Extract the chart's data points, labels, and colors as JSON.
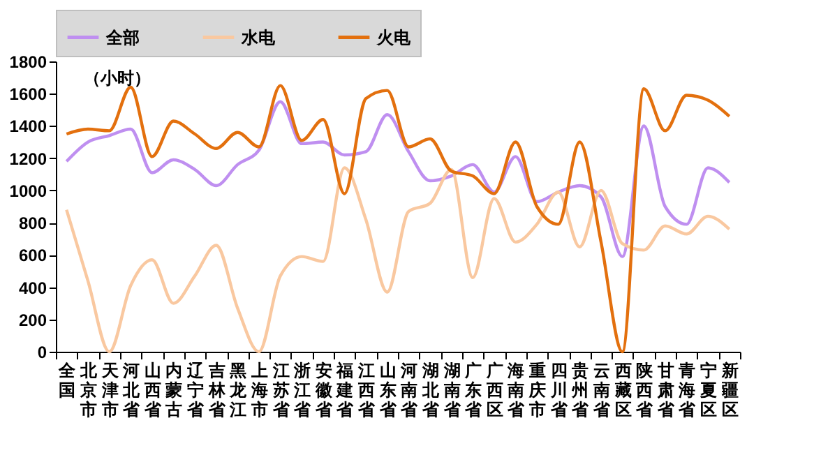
{
  "chart_data": {
    "type": "line",
    "categories": [
      "全国",
      "北京市",
      "天津市",
      "河北省",
      "山西省",
      "内蒙古",
      "辽宁省",
      "吉林省",
      "黑龙江",
      "上海市",
      "江苏省",
      "浙江省",
      "安徽省",
      "福建省",
      "江西省",
      "山东省",
      "河南省",
      "湖北省",
      "湖南省",
      "广东省",
      "广西区",
      "海南省",
      "重庆市",
      "四川省",
      "贵州省",
      "云南省",
      "西藏区",
      "陕西省",
      "甘肃省",
      "青海省",
      "宁夏区",
      "新疆区"
    ],
    "series": [
      {
        "name": "全部",
        "color": "#bf8ff0",
        "values": [
          1180,
          1300,
          1340,
          1380,
          1110,
          1190,
          1130,
          1030,
          1160,
          1250,
          1550,
          1290,
          1300,
          1220,
          1240,
          1470,
          1240,
          1060,
          1090,
          1160,
          990,
          1210,
          930,
          990,
          1030,
          960,
          590,
          1400,
          900,
          790,
          1140,
          1050
        ]
      },
      {
        "name": "水电",
        "color": "#f9c8a0",
        "values": [
          880,
          440,
          0,
          410,
          570,
          300,
          470,
          660,
          270,
          0,
          470,
          590,
          560,
          1140,
          820,
          370,
          870,
          920,
          1130,
          460,
          950,
          680,
          790,
          990,
          650,
          1000,
          670,
          630,
          780,
          730,
          840,
          760
        ]
      },
      {
        "name": "火电",
        "color": "#e3700e",
        "values": [
          1350,
          1380,
          1370,
          1640,
          1210,
          1430,
          1350,
          1260,
          1360,
          1270,
          1650,
          1310,
          1440,
          980,
          1570,
          1620,
          1270,
          1320,
          1120,
          1090,
          980,
          1300,
          900,
          790,
          1300,
          680,
          0,
          1630,
          1370,
          1590,
          1560,
          1460
        ]
      }
    ],
    "ylim": [
      0,
      1800
    ],
    "yticks": [
      0,
      200,
      400,
      600,
      800,
      1000,
      1200,
      1400,
      1600,
      1800
    ],
    "annotations": [
      "（小时）"
    ],
    "legend": "top",
    "grid": false,
    "marker": "none",
    "line_style": "solid"
  }
}
